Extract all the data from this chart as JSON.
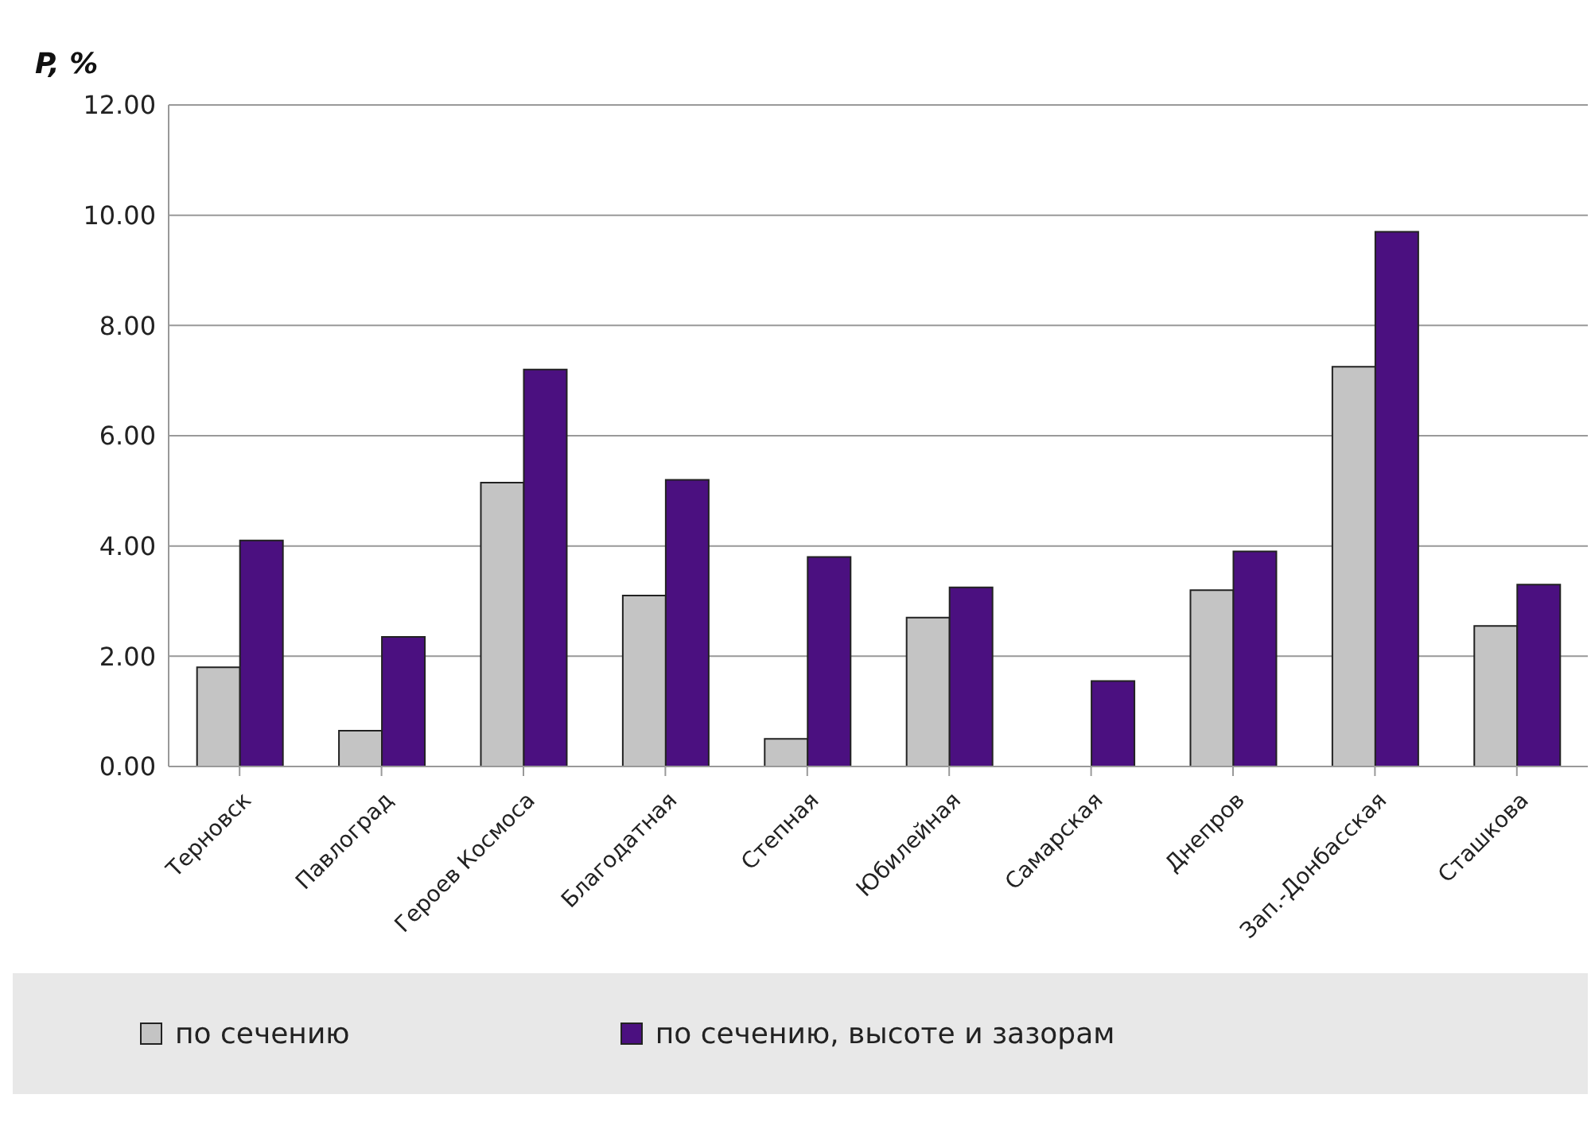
{
  "chart_data": {
    "type": "bar",
    "ylabel": "P, %",
    "categories": [
      "Терновск",
      "Павлоград",
      "Героев Космоса",
      "Благодатная",
      "Степная",
      "Юбилейная",
      "Самарская",
      "Днепров",
      "Зап.-Донбасская",
      "Сташкова"
    ],
    "series": [
      {
        "name": "по сечению",
        "color": "#c4c4c4",
        "values": [
          1.8,
          0.65,
          5.15,
          3.1,
          0.5,
          2.7,
          0,
          3.2,
          7.25,
          2.55
        ]
      },
      {
        "name": "по сечению, высоте и зазорам",
        "color": "#4b1080",
        "values": [
          4.1,
          2.35,
          7.2,
          5.2,
          3.8,
          3.25,
          1.55,
          3.9,
          9.7,
          3.3
        ]
      }
    ],
    "ylim": [
      0,
      12
    ],
    "yticks": [
      {
        "value": 0,
        "label": "0.00"
      },
      {
        "value": 2,
        "label": "2.00"
      },
      {
        "value": 4,
        "label": "4.00"
      },
      {
        "value": 6,
        "label": "6.00"
      },
      {
        "value": 8,
        "label": "8.00"
      },
      {
        "value": 10,
        "label": "10.00"
      },
      {
        "value": 12,
        "label": "12.00"
      }
    ],
    "grid": "y",
    "legend": "bottom"
  }
}
